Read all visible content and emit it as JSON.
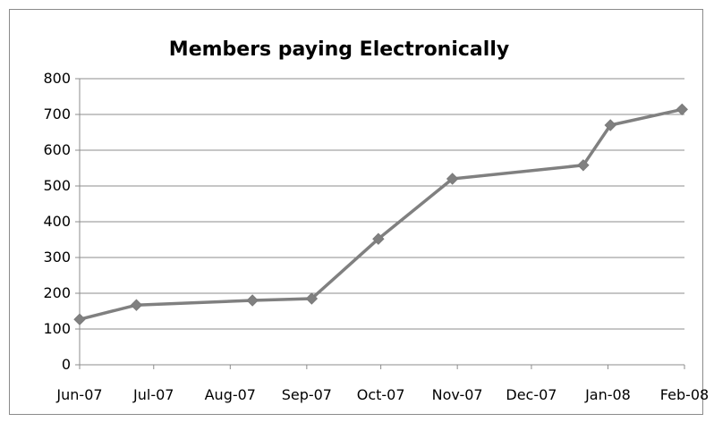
{
  "chart_data": {
    "type": "line",
    "title": "Members paying Electronically",
    "xlabel": "",
    "ylabel": "",
    "x_axis_type": "date",
    "xlim": [
      "2007-06-01",
      "2008-02-01"
    ],
    "ylim": [
      0,
      800
    ],
    "yticks": [
      0,
      100,
      200,
      300,
      400,
      500,
      600,
      700,
      800
    ],
    "xticks": [
      {
        "date": "2007-06-01",
        "label": "Jun-07"
      },
      {
        "date": "2007-07-01",
        "label": "Jul-07"
      },
      {
        "date": "2007-08-01",
        "label": "Aug-07"
      },
      {
        "date": "2007-09-01",
        "label": "Sep-07"
      },
      {
        "date": "2007-10-01",
        "label": "Oct-07"
      },
      {
        "date": "2007-11-01",
        "label": "Nov-07"
      },
      {
        "date": "2007-12-01",
        "label": "Dec-07"
      },
      {
        "date": "2008-01-01",
        "label": "Jan-08"
      },
      {
        "date": "2008-02-01",
        "label": "Feb-08"
      }
    ],
    "grid": true,
    "legend": "none",
    "series": [
      {
        "color": "#808080",
        "marker": "diamond",
        "points": [
          {
            "x": "2007-06-01",
            "y": 127
          },
          {
            "x": "2007-06-24",
            "y": 167
          },
          {
            "x": "2007-08-10",
            "y": 180
          },
          {
            "x": "2007-09-03",
            "y": 185
          },
          {
            "x": "2007-09-30",
            "y": 352
          },
          {
            "x": "2007-10-30",
            "y": 520
          },
          {
            "x": "2007-12-22",
            "y": 558
          },
          {
            "x": "2008-01-02",
            "y": 670
          },
          {
            "x": "2008-01-31",
            "y": 714
          }
        ]
      }
    ]
  }
}
